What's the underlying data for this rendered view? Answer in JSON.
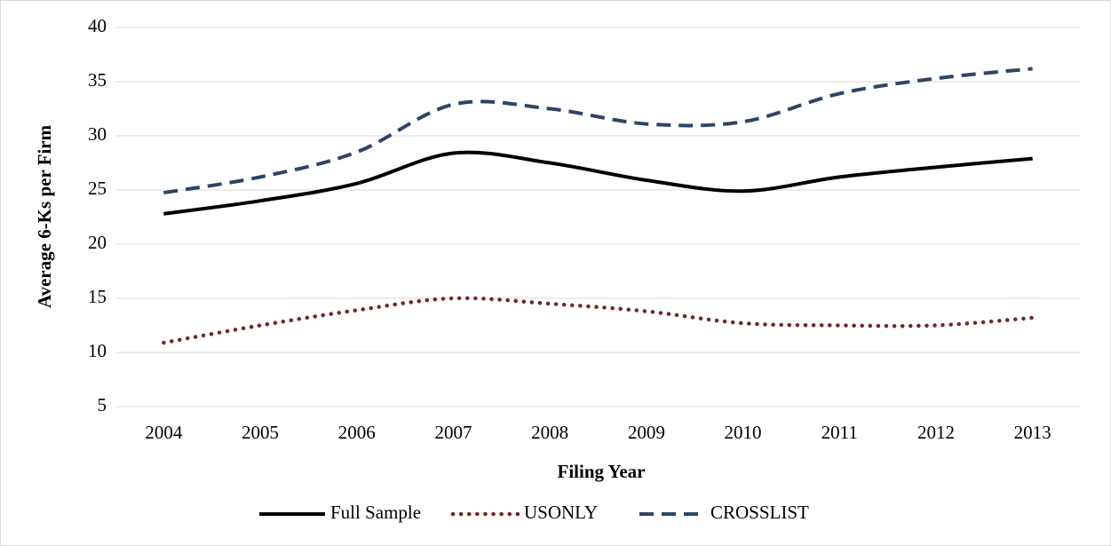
{
  "chart_data": {
    "type": "line",
    "xlabel": "Filing Year",
    "ylabel": "Average 6-Ks per Firm",
    "categories": [
      "2004",
      "2005",
      "2006",
      "2007",
      "2008",
      "2009",
      "2010",
      "2011",
      "2012",
      "2013"
    ],
    "series": [
      {
        "name": "Full Sample",
        "color": "#000000",
        "style": "solid",
        "values": [
          22.8,
          24.0,
          25.6,
          28.4,
          27.5,
          25.9,
          24.9,
          26.2,
          27.1,
          27.9
        ]
      },
      {
        "name": "USONLY",
        "color": "#6e2a2a",
        "style": "dotted",
        "values": [
          10.9,
          12.5,
          13.9,
          15.0,
          14.5,
          13.8,
          12.7,
          12.5,
          12.5,
          13.2
        ]
      },
      {
        "name": "CROSSLIST",
        "color": "#2e4563",
        "style": "dashed",
        "values": [
          24.75,
          26.2,
          28.5,
          32.9,
          32.5,
          31.1,
          31.3,
          33.9,
          35.3,
          36.2
        ]
      }
    ],
    "ylim": [
      5,
      40
    ],
    "yticks": [
      5,
      10,
      15,
      20,
      25,
      30,
      35,
      40
    ],
    "grid": true,
    "legend": "bottom",
    "smooth": true
  }
}
